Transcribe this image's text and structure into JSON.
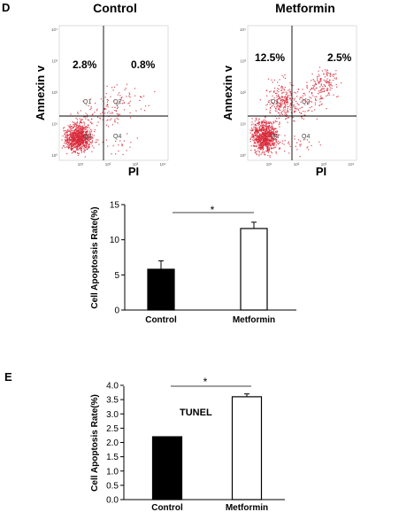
{
  "panel_labels": {
    "d": "D",
    "e": "E"
  },
  "colors": {
    "dots": "#d8283a",
    "bar_control": "#000000",
    "bar_metformin": "#ffffff",
    "line": "#000000"
  },
  "flow_panels": [
    {
      "title": "Control",
      "ylabel": "Annexin v",
      "xlabel": "PI",
      "ul_pct": "2.8%",
      "ur_pct": "0.8%",
      "q": [
        "Q1",
        "Q2",
        "Q3",
        "Q4"
      ],
      "yticks": [
        "10⁴",
        "10³",
        "10²",
        "10¹",
        "10⁰"
      ],
      "xticks": [
        "10¹",
        "10²",
        "10³",
        "10⁴"
      ]
    },
    {
      "title": "Metformin",
      "ylabel": "Annexin v",
      "xlabel": "PI",
      "ul_pct": "12.5%",
      "ur_pct": "2.5%",
      "q": [
        "Q1",
        "Q2",
        "Q3",
        "Q4"
      ],
      "yticks": [
        "10⁴",
        "10³",
        "10²",
        "10¹",
        "10⁰"
      ],
      "xticks": [
        "10¹",
        "10²",
        "10³",
        "10⁴"
      ]
    }
  ],
  "chart_data": [
    {
      "type": "scatter",
      "title": "Control",
      "xlabel": "PI",
      "ylabel": "Annexin v",
      "quadrant_percentages": {
        "upper_left": "2.8%",
        "upper_right": "0.8%"
      },
      "quadrant_labels": [
        "Q1",
        "Q2",
        "Q3",
        "Q4"
      ]
    },
    {
      "type": "scatter",
      "title": "Metformin",
      "xlabel": "PI",
      "ylabel": "Annexin v",
      "quadrant_percentages": {
        "upper_left": "12.5%",
        "upper_right": "2.5%"
      },
      "quadrant_labels": [
        "Q1",
        "Q2",
        "Q3",
        "Q4"
      ]
    },
    {
      "type": "bar",
      "categories": [
        "Control",
        "Metformin"
      ],
      "values": [
        5.8,
        11.6
      ],
      "errors": [
        1.2,
        0.9
      ],
      "ylabel": "Cell Apoptossis Rate(%)",
      "ylim": [
        0,
        15
      ],
      "yticks": [
        "0",
        "5",
        "10",
        "15"
      ],
      "significance": "*"
    },
    {
      "type": "bar",
      "categories": [
        "Control",
        "Metformin"
      ],
      "values": [
        2.2,
        3.6
      ],
      "errors": [
        0.0,
        0.1
      ],
      "ylabel": "Cell Apoptosis Rate(%)",
      "ylim": [
        0,
        4.0
      ],
      "yticks": [
        "0.0",
        "0.5",
        "1.0",
        "1.5",
        "2.0",
        "2.5",
        "3.0",
        "3.5",
        "4.0"
      ],
      "significance": "*",
      "annotation": "TUNEL"
    }
  ]
}
